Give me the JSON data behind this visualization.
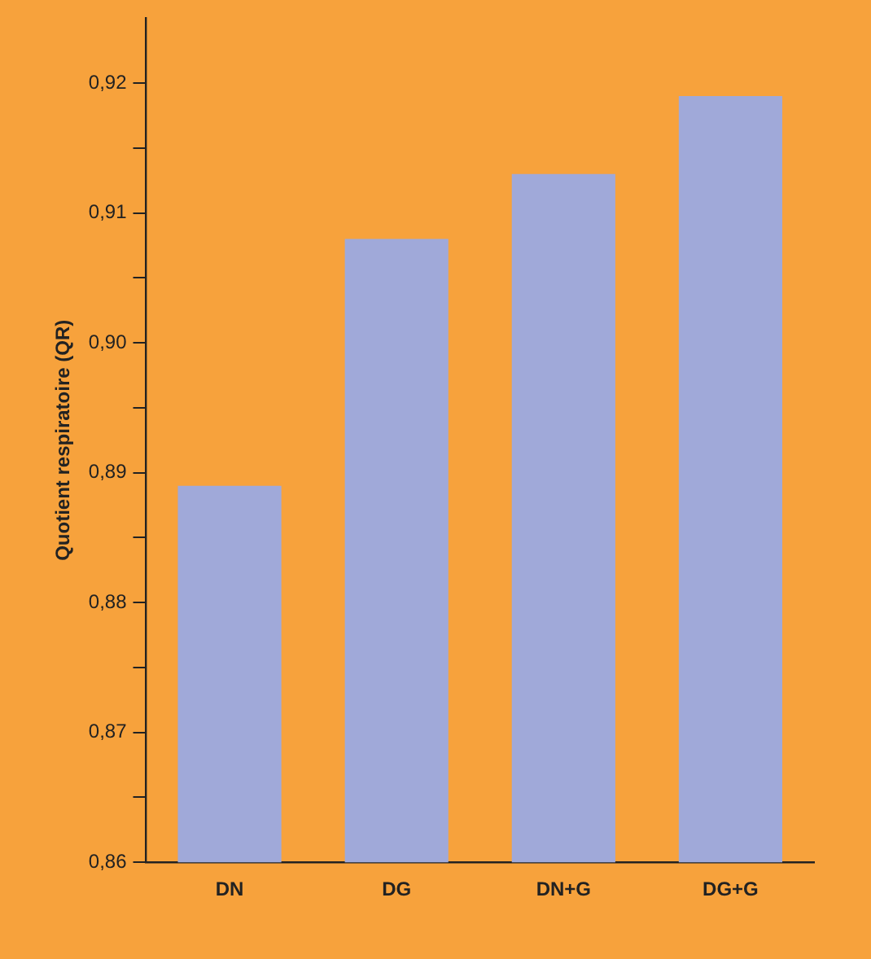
{
  "chart_data": {
    "type": "bar",
    "ylabel": "Quotient respiratoire (QR)",
    "categories": [
      "DN",
      "DG",
      "DN+G",
      "DG+G"
    ],
    "values": [
      0.889,
      0.908,
      0.913,
      0.919
    ],
    "color": "#a0a9d9",
    "ylim": [
      0.86,
      0.925
    ],
    "yticks": [
      {
        "value": 0.86,
        "label": "0,86"
      },
      {
        "value": 0.865,
        "label": null
      },
      {
        "value": 0.87,
        "label": "0,87"
      },
      {
        "value": 0.875,
        "label": null
      },
      {
        "value": 0.88,
        "label": "0,88"
      },
      {
        "value": 0.885,
        "label": null
      },
      {
        "value": 0.89,
        "label": "0,89"
      },
      {
        "value": 0.895,
        "label": null
      },
      {
        "value": 0.9,
        "label": "0,90"
      },
      {
        "value": 0.905,
        "label": null
      },
      {
        "value": 0.91,
        "label": "0,91"
      },
      {
        "value": 0.915,
        "label": null
      },
      {
        "value": 0.92,
        "label": "0,92"
      }
    ],
    "grid": false,
    "legend": false
  }
}
